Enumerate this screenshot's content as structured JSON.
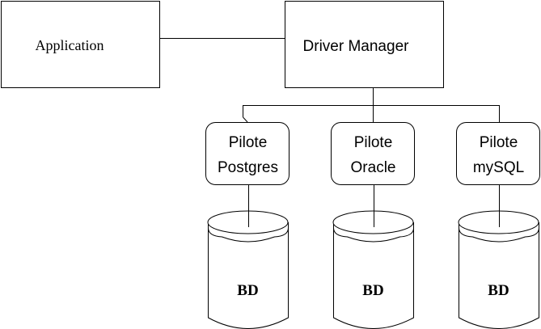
{
  "application": {
    "label": "Application"
  },
  "driver_manager": {
    "label": "Driver Manager"
  },
  "drivers": [
    {
      "line1": "Pilote",
      "line2": "Postgres",
      "db": "BD"
    },
    {
      "line1": "Pilote",
      "line2": "Oracle",
      "db": "BD"
    },
    {
      "line1": "Pilote",
      "line2": "mySQL",
      "db": "BD"
    }
  ]
}
